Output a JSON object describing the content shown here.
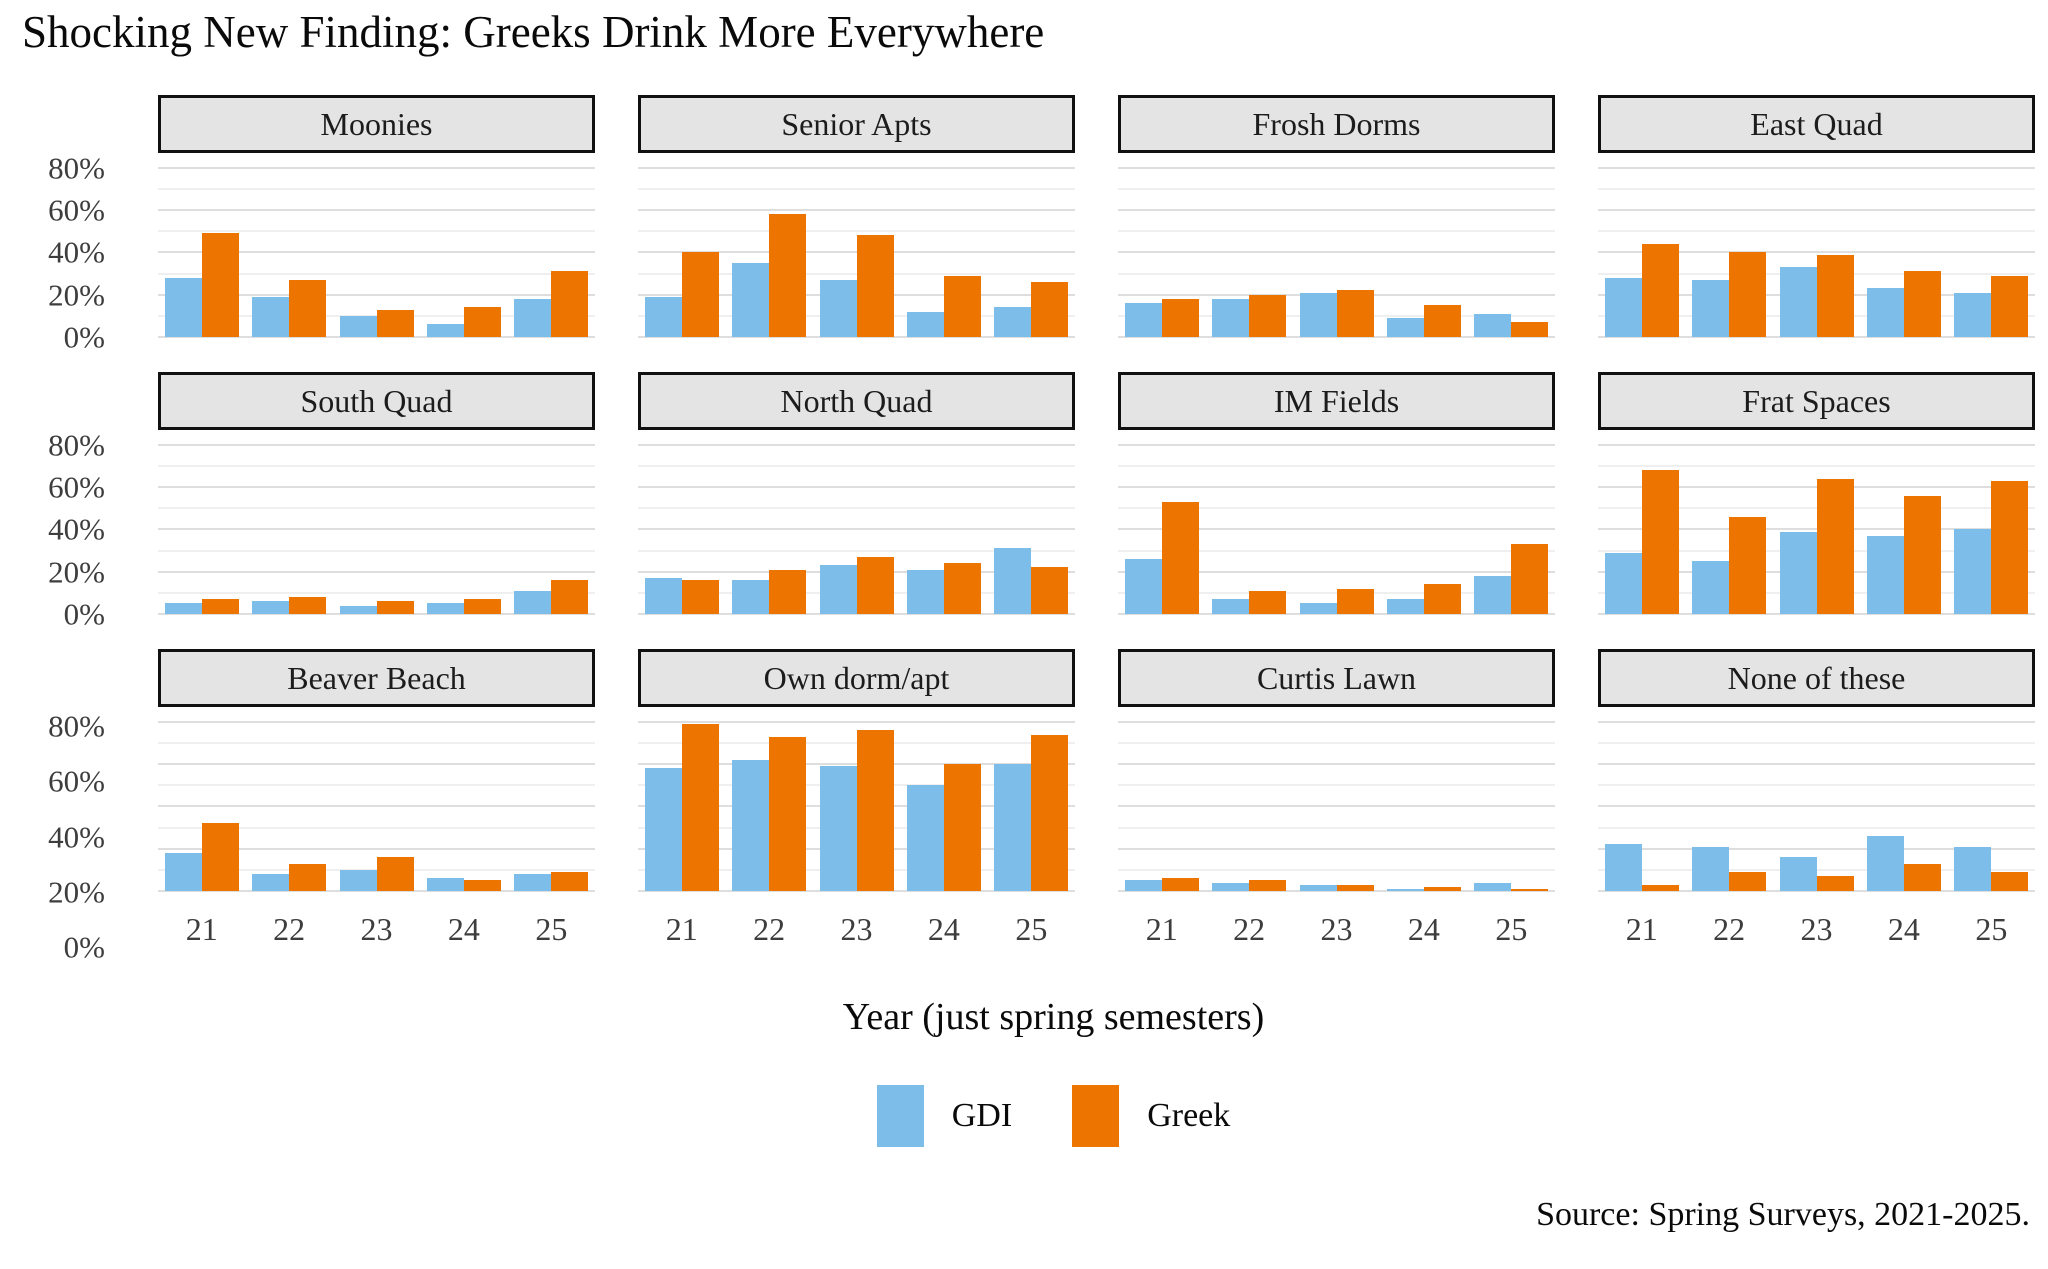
{
  "title": "Shocking New Finding: Greeks Drink More Everywhere",
  "axis": {
    "x_title": "Year (just spring semesters)",
    "x_ticks": [
      "21",
      "22",
      "23",
      "24",
      "25"
    ],
    "y_ticks": [
      "0%",
      "20%",
      "40%",
      "60%",
      "80%"
    ]
  },
  "legend": {
    "items": [
      {
        "label": "GDI",
        "color": "#7dbde9"
      },
      {
        "label": "Greek",
        "color": "#ee7400"
      }
    ]
  },
  "source": "Source: Spring Surveys, 2021-2025.",
  "chart_data": {
    "type": "bar",
    "title": "Shocking New Finding: Greeks Drink More Everywhere",
    "xlabel": "Year (just spring semesters)",
    "ylabel": "",
    "ylim": [
      0,
      80
    ],
    "y_unit": "%",
    "grid": true,
    "legend_position": "bottom",
    "series_names": [
      "GDI",
      "Greek"
    ],
    "series_colors": [
      "#7dbde9",
      "#ee7400"
    ],
    "categories": [
      "21",
      "22",
      "23",
      "24",
      "25"
    ],
    "facets": [
      {
        "name": "Moonies",
        "series": [
          {
            "name": "GDI",
            "values": [
              28,
              19,
              10,
              6,
              18
            ]
          },
          {
            "name": "Greek",
            "values": [
              49,
              27,
              13,
              14,
              31
            ]
          }
        ]
      },
      {
        "name": "Senior Apts",
        "series": [
          {
            "name": "GDI",
            "values": [
              19,
              35,
              27,
              12,
              14
            ]
          },
          {
            "name": "Greek",
            "values": [
              40,
              58,
              48,
              29,
              26
            ]
          }
        ]
      },
      {
        "name": "Frosh Dorms",
        "series": [
          {
            "name": "GDI",
            "values": [
              16,
              18,
              21,
              9,
              11
            ]
          },
          {
            "name": "Greek",
            "values": [
              18,
              20,
              22,
              15,
              7
            ]
          }
        ]
      },
      {
        "name": "East Quad",
        "series": [
          {
            "name": "GDI",
            "values": [
              28,
              27,
              33,
              23,
              21
            ]
          },
          {
            "name": "Greek",
            "values": [
              44,
              40,
              39,
              31,
              29
            ]
          }
        ]
      },
      {
        "name": "South Quad",
        "series": [
          {
            "name": "GDI",
            "values": [
              5,
              6,
              4,
              5,
              11
            ]
          },
          {
            "name": "Greek",
            "values": [
              7,
              8,
              6,
              7,
              16
            ]
          }
        ]
      },
      {
        "name": "North Quad",
        "series": [
          {
            "name": "GDI",
            "values": [
              17,
              16,
              23,
              21,
              31
            ]
          },
          {
            "name": "Greek",
            "values": [
              16,
              21,
              27,
              24,
              22
            ]
          }
        ]
      },
      {
        "name": "IM Fields",
        "series": [
          {
            "name": "GDI",
            "values": [
              26,
              7,
              5,
              7,
              18
            ]
          },
          {
            "name": "Greek",
            "values": [
              53,
              11,
              12,
              14,
              33
            ]
          }
        ]
      },
      {
        "name": "Frat Spaces",
        "series": [
          {
            "name": "GDI",
            "values": [
              29,
              25,
              39,
              37,
              40
            ]
          },
          {
            "name": "Greek",
            "values": [
              68,
              46,
              64,
              56,
              63
            ]
          }
        ]
      },
      {
        "name": "Beaver Beach",
        "series": [
          {
            "name": "GDI",
            "values": [
              18,
              8,
              10,
              6,
              8
            ]
          },
          {
            "name": "Greek",
            "values": [
              32,
              13,
              16,
              5,
              9
            ]
          }
        ]
      },
      {
        "name": "Own dorm/apt",
        "series": [
          {
            "name": "GDI",
            "values": [
              58,
              62,
              59,
              50,
              60
            ]
          },
          {
            "name": "Greek",
            "values": [
              79,
              73,
              76,
              60,
              74
            ]
          }
        ]
      },
      {
        "name": "Curtis Lawn",
        "series": [
          {
            "name": "GDI",
            "values": [
              5,
              4,
              3,
              1,
              4
            ]
          },
          {
            "name": "Greek",
            "values": [
              6,
              5,
              3,
              2,
              1
            ]
          }
        ]
      },
      {
        "name": "None of these",
        "series": [
          {
            "name": "GDI",
            "values": [
              22,
              21,
              16,
              26,
              21
            ]
          },
          {
            "name": "Greek",
            "values": [
              3,
              9,
              7,
              13,
              9
            ]
          }
        ]
      }
    ]
  }
}
